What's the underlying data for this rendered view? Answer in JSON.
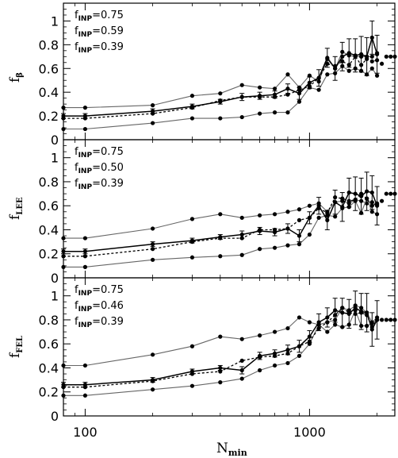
{
  "chart_data": {
    "type": "line",
    "xscale": "log",
    "xlim": [
      80,
      2400
    ],
    "xticks": [
      100,
      1000
    ],
    "xtick_labels": [
      "100",
      "1000"
    ],
    "xlabel_main": "N",
    "xlabel_sub": "min",
    "ylim": [
      0,
      1.15
    ],
    "yticks": [
      0,
      0.2,
      0.4,
      0.6,
      0.8,
      1
    ],
    "ytick_labels": [
      "0",
      "0.2",
      "0.4",
      "0.6",
      "0.8",
      "1"
    ],
    "panels": [
      {
        "ylabel_main": "f",
        "ylabel_sub": "β",
        "legend": [
          {
            "main": "f",
            "sub": "INP",
            "value": "=0.75"
          },
          {
            "main": "f",
            "sub": "INP",
            "value": "=0.59"
          },
          {
            "main": "f",
            "sub": "INP",
            "value": "=0.39"
          }
        ],
        "series": [
          {
            "style": "upper",
            "x": [
              80,
              100,
              200,
              300,
              400,
              500,
              600,
              700,
              800,
              900,
              1000,
              1100,
              1200,
              1300,
              1400,
              1500,
              1600,
              1700,
              1800,
              1900,
              2000
            ],
            "y": [
              0.27,
              0.27,
              0.29,
              0.37,
              0.39,
              0.46,
              0.44,
              0.43,
              0.55,
              0.44,
              0.54,
              0.49,
              0.68,
              0.6,
              0.74,
              0.71,
              0.7,
              0.7,
              0.7,
              0.7,
              0.73
            ]
          },
          {
            "style": "lower",
            "x": [
              80,
              100,
              200,
              300,
              400,
              500,
              600,
              700,
              800,
              900,
              1000,
              1100,
              1200,
              1300,
              1400,
              1500,
              1600,
              1700,
              1800,
              1900,
              2000
            ],
            "y": [
              0.09,
              0.09,
              0.14,
              0.18,
              0.18,
              0.19,
              0.22,
              0.23,
              0.23,
              0.32,
              0.44,
              0.42,
              0.55,
              0.56,
              0.62,
              0.58,
              0.6,
              0.58,
              0.55,
              0.6,
              0.54
            ]
          },
          {
            "style": "dotted",
            "x": [
              80,
              100,
              200,
              300,
              400,
              500,
              600,
              700,
              800,
              900,
              1000,
              1100,
              1200,
              1300,
              1400,
              1500,
              1600,
              1700,
              1800,
              1900,
              2000
            ],
            "y": [
              0.18,
              0.18,
              0.22,
              0.27,
              0.33,
              0.36,
              0.36,
              0.36,
              0.38,
              0.42,
              0.45,
              0.52,
              0.64,
              0.62,
              0.66,
              0.63,
              0.7,
              0.63,
              0.68,
              0.66,
              0.67
            ]
          },
          {
            "style": "solid_err",
            "x": [
              80,
              100,
              200,
              300,
              400,
              500,
              600,
              700,
              800,
              900,
              1000,
              1100,
              1200,
              1300,
              1400,
              1500,
              1600,
              1700,
              1800,
              1900,
              2000
            ],
            "y": [
              0.2,
              0.2,
              0.24,
              0.28,
              0.32,
              0.36,
              0.37,
              0.38,
              0.43,
              0.39,
              0.48,
              0.52,
              0.69,
              0.6,
              0.7,
              0.73,
              0.71,
              0.72,
              0.7,
              0.86,
              0.72
            ],
            "err": [
              0.02,
              0.02,
              0.02,
              0.02,
              0.02,
              0.03,
              0.03,
              0.03,
              0.04,
              0.05,
              0.05,
              0.07,
              0.08,
              0.1,
              0.12,
              0.12,
              0.14,
              0.15,
              0.16,
              0.14,
              0.16
            ]
          },
          {
            "style": "tail",
            "x": [
              2100,
              2200,
              2300,
              2400
            ],
            "y": [
              0.64,
              0.7,
              0.7,
              0.7
            ]
          }
        ]
      },
      {
        "ylabel_main": "f",
        "ylabel_sub": "LEE",
        "legend": [
          {
            "main": "f",
            "sub": "INP",
            "value": "=0.75"
          },
          {
            "main": "f",
            "sub": "INP",
            "value": "=0.50"
          },
          {
            "main": "f",
            "sub": "INP",
            "value": "=0.39"
          }
        ],
        "series": [
          {
            "style": "upper",
            "x": [
              80,
              100,
              200,
              300,
              400,
              500,
              600,
              700,
              800,
              900,
              1000,
              1100,
              1200,
              1300,
              1400,
              1500,
              1600,
              1700,
              1800,
              1900,
              2000
            ],
            "y": [
              0.33,
              0.33,
              0.41,
              0.49,
              0.53,
              0.5,
              0.52,
              0.53,
              0.55,
              0.57,
              0.6,
              0.62,
              0.55,
              0.63,
              0.64,
              0.62,
              0.65,
              0.64,
              0.62,
              0.63,
              0.61
            ]
          },
          {
            "style": "lower",
            "x": [
              80,
              100,
              200,
              300,
              400,
              500,
              600,
              700,
              800,
              900,
              1000,
              1100,
              1200,
              1300,
              1400,
              1500,
              1600,
              1700,
              1800,
              1900,
              2000
            ],
            "y": [
              0.09,
              0.09,
              0.15,
              0.17,
              0.18,
              0.19,
              0.24,
              0.25,
              0.27,
              0.28,
              0.36,
              0.5,
              0.52,
              0.51,
              0.58,
              0.59,
              0.64,
              0.54,
              0.66,
              0.55,
              0.53
            ]
          },
          {
            "style": "dotted",
            "x": [
              80,
              100,
              200,
              300,
              400,
              500,
              600,
              700,
              800,
              900,
              1000,
              1100,
              1200,
              1300,
              1400,
              1500,
              1600,
              1700,
              1800,
              1900,
              2000
            ],
            "y": [
              0.18,
              0.18,
              0.24,
              0.3,
              0.33,
              0.33,
              0.4,
              0.4,
              0.41,
              0.48,
              0.5,
              0.58,
              0.54,
              0.67,
              0.66,
              0.64,
              0.65,
              0.7,
              0.66,
              0.6,
              0.62
            ]
          },
          {
            "style": "solid_err",
            "x": [
              80,
              100,
              200,
              300,
              400,
              500,
              600,
              700,
              800,
              900,
              1000,
              1100,
              1200,
              1300,
              1400,
              1500,
              1600,
              1700,
              1800,
              1900,
              2000
            ],
            "y": [
              0.22,
              0.22,
              0.28,
              0.31,
              0.34,
              0.36,
              0.39,
              0.38,
              0.41,
              0.35,
              0.5,
              0.6,
              0.48,
              0.63,
              0.59,
              0.71,
              0.7,
              0.68,
              0.72,
              0.71,
              0.6
            ],
            "err": [
              0.02,
              0.02,
              0.02,
              0.02,
              0.02,
              0.03,
              0.03,
              0.03,
              0.04,
              0.05,
              0.05,
              0.07,
              0.08,
              0.1,
              0.12,
              0.12,
              0.14,
              0.15,
              0.16,
              0.14,
              0.16
            ]
          },
          {
            "style": "tail",
            "x": [
              2100,
              2200,
              2300,
              2400
            ],
            "y": [
              0.64,
              0.7,
              0.7,
              0.7
            ]
          }
        ]
      },
      {
        "ylabel_main": "f",
        "ylabel_sub": "FEL",
        "legend": [
          {
            "main": "f",
            "sub": "INP",
            "value": "=0.75"
          },
          {
            "main": "f",
            "sub": "INP",
            "value": "=0.46"
          },
          {
            "main": "f",
            "sub": "INP",
            "value": "=0.39"
          }
        ],
        "series": [
          {
            "style": "upper",
            "x": [
              80,
              100,
              200,
              300,
              400,
              500,
              600,
              700,
              800,
              900,
              1000,
              1100,
              1200,
              1300,
              1400,
              1500,
              1600,
              1700,
              1800,
              1900,
              2000
            ],
            "y": [
              0.42,
              0.42,
              0.51,
              0.58,
              0.66,
              0.64,
              0.67,
              0.7,
              0.73,
              0.82,
              0.78,
              0.76,
              0.78,
              0.8,
              0.9,
              0.88,
              0.92,
              0.9,
              0.86,
              0.78,
              0.82
            ]
          },
          {
            "style": "lower",
            "x": [
              80,
              100,
              200,
              300,
              400,
              500,
              600,
              700,
              800,
              900,
              1000,
              1100,
              1200,
              1300,
              1400,
              1500,
              1600,
              1700,
              1800,
              1900,
              2000
            ],
            "y": [
              0.17,
              0.17,
              0.22,
              0.25,
              0.28,
              0.31,
              0.38,
              0.42,
              0.44,
              0.5,
              0.6,
              0.76,
              0.7,
              0.76,
              0.74,
              0.76,
              0.88,
              0.75,
              0.75,
              0.77,
              0.8
            ]
          },
          {
            "style": "dotted",
            "x": [
              80,
              100,
              200,
              300,
              400,
              500,
              600,
              700,
              800,
              900,
              1000,
              1100,
              1200,
              1300,
              1400,
              1500,
              1600,
              1700,
              1800,
              1900,
              2000
            ],
            "y": [
              0.24,
              0.24,
              0.29,
              0.35,
              0.37,
              0.46,
              0.49,
              0.5,
              0.52,
              0.58,
              0.62,
              0.73,
              0.78,
              0.84,
              0.9,
              0.86,
              0.85,
              0.86,
              0.84,
              0.74,
              0.8
            ]
          },
          {
            "style": "solid_err",
            "x": [
              80,
              100,
              200,
              300,
              400,
              500,
              600,
              700,
              800,
              900,
              1000,
              1100,
              1200,
              1300,
              1400,
              1500,
              1600,
              1700,
              1800,
              1900,
              2000
            ],
            "y": [
              0.26,
              0.26,
              0.3,
              0.37,
              0.4,
              0.38,
              0.5,
              0.52,
              0.55,
              0.58,
              0.66,
              0.78,
              0.82,
              0.88,
              0.86,
              0.85,
              0.9,
              0.87,
              0.86,
              0.72,
              0.8
            ],
            "err": [
              0.02,
              0.02,
              0.02,
              0.02,
              0.02,
              0.03,
              0.03,
              0.03,
              0.04,
              0.05,
              0.05,
              0.07,
              0.08,
              0.1,
              0.12,
              0.12,
              0.14,
              0.15,
              0.16,
              0.14,
              0.16
            ]
          },
          {
            "style": "tail",
            "x": [
              2100,
              2200,
              2300,
              2400
            ],
            "y": [
              0.8,
              0.8,
              0.8,
              0.8
            ]
          }
        ]
      }
    ]
  }
}
